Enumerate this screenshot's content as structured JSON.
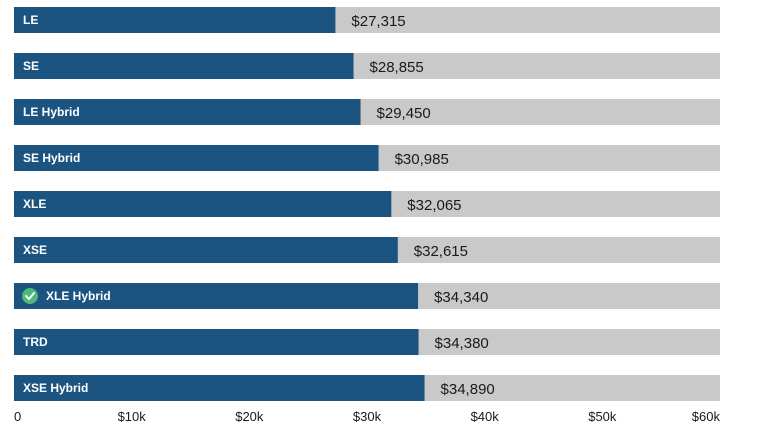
{
  "chart_data": {
    "type": "bar",
    "orientation": "horizontal",
    "categories": [
      "LE",
      "SE",
      "LE Hybrid",
      "SE Hybrid",
      "XLE",
      "XSE",
      "XLE Hybrid",
      "TRD",
      "XSE Hybrid"
    ],
    "values": [
      27315,
      28855,
      29450,
      30985,
      32065,
      32615,
      34340,
      34380,
      34890
    ],
    "value_labels": [
      "$27,315",
      "$28,855",
      "$29,450",
      "$30,985",
      "$32,065",
      "$32,615",
      "$34,340",
      "$34,380",
      "$34,890"
    ],
    "selected_category": "XLE Hybrid",
    "xlim": [
      0,
      60000
    ],
    "xticks": [
      0,
      10000,
      20000,
      30000,
      40000,
      50000,
      60000
    ],
    "xtick_labels": [
      "0",
      "$10k",
      "$20k",
      "$30k",
      "$40k",
      "$50k",
      "$60k"
    ],
    "title": "",
    "xlabel": "",
    "ylabel": "",
    "grid": false,
    "colors": {
      "bar": "#1b5480",
      "track": "#c9c9c9",
      "check": "#4cb87a"
    }
  }
}
